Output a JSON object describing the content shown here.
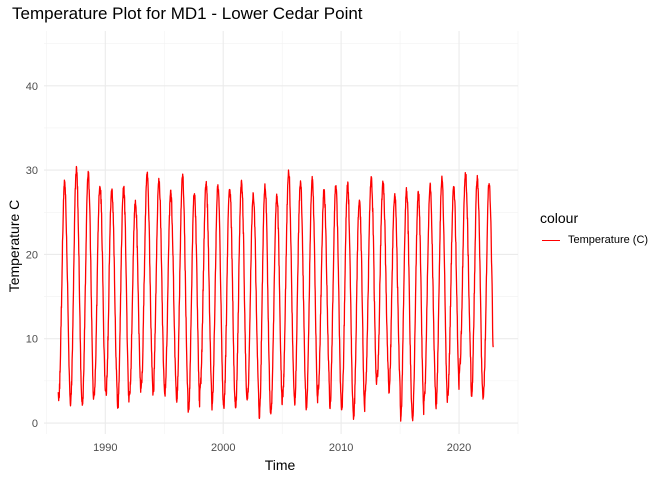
{
  "chart_data": {
    "type": "line",
    "title": "Temperature Plot for MD1 - Lower Cedar Point",
    "xlabel": "Time",
    "ylabel": "Temperature C",
    "xlim": [
      1984.8,
      2025.0
    ],
    "ylim": [
      -1.3,
      46.5
    ],
    "x_ticks": [
      1990,
      2000,
      2010,
      2020
    ],
    "x_tick_labels": [
      "1990",
      "2000",
      "2010",
      "2020"
    ],
    "y_ticks": [
      0,
      10,
      20,
      30,
      40
    ],
    "y_tick_labels": [
      "0",
      "10",
      "20",
      "30",
      "40"
    ],
    "grid": true,
    "legend_position": "right",
    "legend_title": "colour",
    "series": [
      {
        "name": "Temperature (C)",
        "color": "#ff0000",
        "start_year": 1986.0,
        "end_year": 2022.9,
        "cycle": "annual",
        "seasonal_peaks": [
          28.5,
          30.0,
          29.5,
          28.3,
          27.5,
          27.8,
          26.2,
          29.5,
          29.0,
          27.3,
          29.3,
          27.3,
          28.5,
          28.1,
          28.0,
          28.5,
          27.0,
          28.2,
          27.0,
          29.8,
          28.5,
          29.0,
          27.5,
          28.1,
          28.3,
          26.5,
          28.9,
          28.4,
          27.0,
          27.6,
          27.3,
          28.0,
          29.0,
          28.0,
          29.5,
          29.0,
          28.5
        ],
        "seasonal_troughs": [
          3.0,
          2.5,
          2.3,
          3.5,
          3.5,
          1.8,
          3.3,
          4.5,
          3.5,
          3.5,
          2.5,
          1.3,
          4.2,
          2.0,
          2.0,
          2.2,
          3.0,
          0.7,
          1.5,
          3.5,
          2.5,
          1.6,
          4.0,
          2.0,
          1.7,
          0.5,
          4.0,
          5.5,
          3.8,
          0.7,
          0.5,
          3.0,
          2.0,
          3.5,
          6.5,
          3.0,
          3.0
        ],
        "end_value": 9.0
      }
    ]
  }
}
